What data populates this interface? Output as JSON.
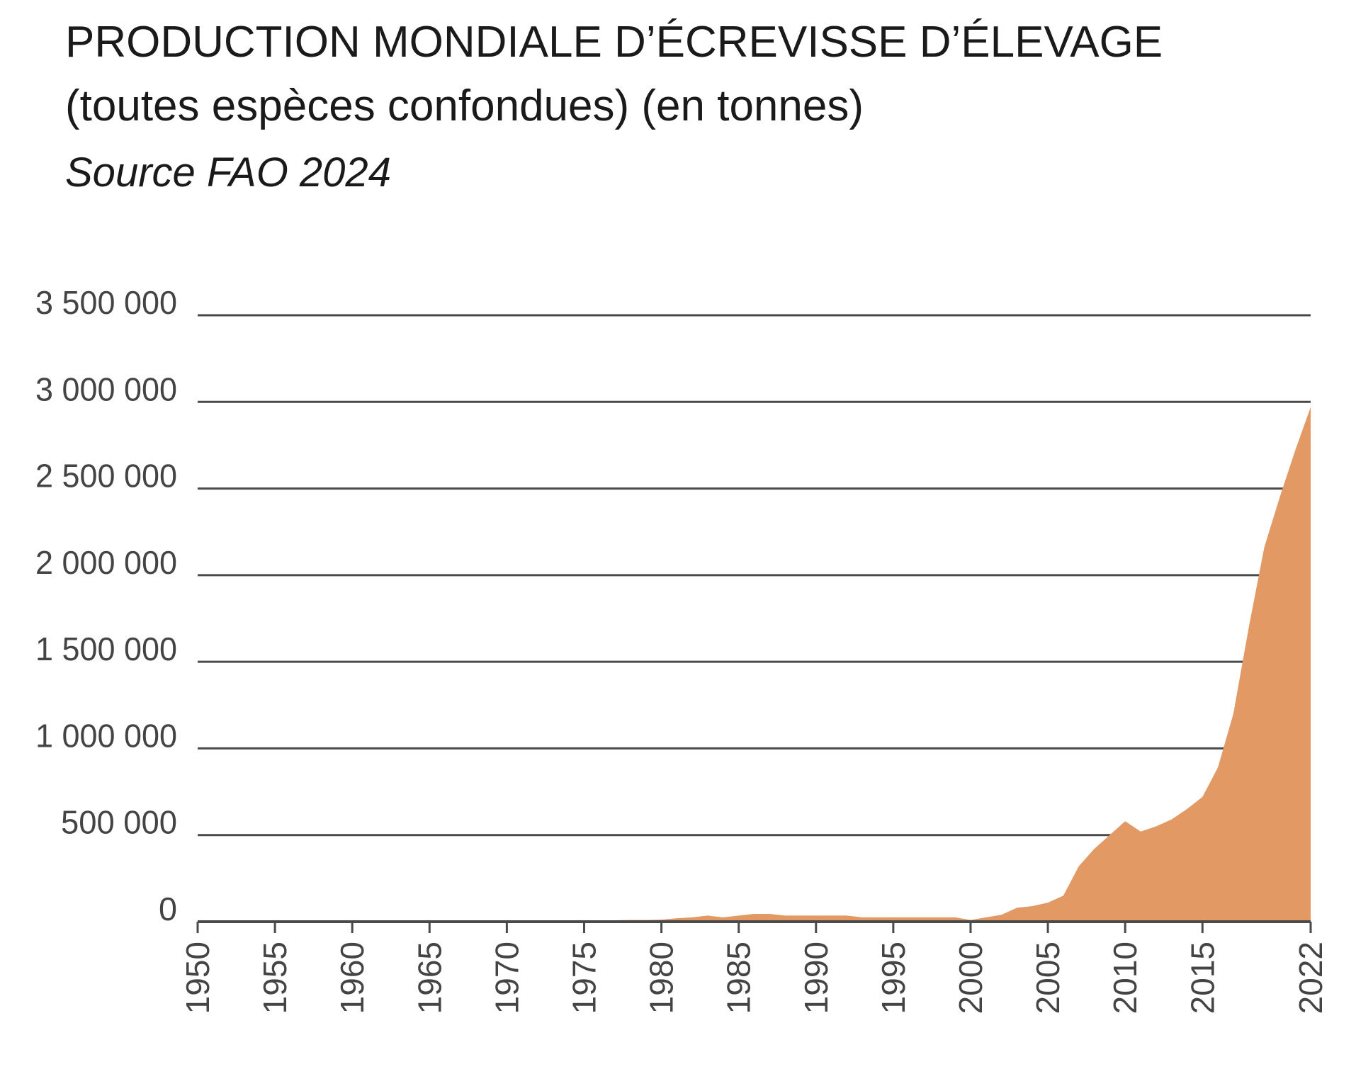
{
  "chart_data": {
    "type": "area",
    "title": "PRODUCTION MONDIALE D’ÉCREVISSE D’ÉLEVAGE",
    "subtitle": "(toutes espèces confondues) (en tonnes)",
    "source": "Source FAO 2024",
    "xlim": [
      1950,
      2022
    ],
    "ylim": [
      0,
      3500000
    ],
    "grid": true,
    "colors": {
      "area": "#e39964",
      "grid": "#4a4a4a",
      "text": "#444444"
    },
    "y_ticks": [
      {
        "value": 0,
        "label": "0"
      },
      {
        "value": 500000,
        "label": "500 000"
      },
      {
        "value": 1000000,
        "label": "1 000 000"
      },
      {
        "value": 1500000,
        "label": "1 500 000"
      },
      {
        "value": 2000000,
        "label": "2 000 000"
      },
      {
        "value": 2500000,
        "label": "2 500 000"
      },
      {
        "value": 3000000,
        "label": "3 000 000"
      },
      {
        "value": 3500000,
        "label": "3 500 000"
      }
    ],
    "x_ticks": [
      {
        "value": 1950,
        "label": "1950"
      },
      {
        "value": 1955,
        "label": "1955"
      },
      {
        "value": 1960,
        "label": "1960"
      },
      {
        "value": 1965,
        "label": "1965"
      },
      {
        "value": 1970,
        "label": "1970"
      },
      {
        "value": 1975,
        "label": "1975"
      },
      {
        "value": 1980,
        "label": "1980"
      },
      {
        "value": 1985,
        "label": "1985"
      },
      {
        "value": 1990,
        "label": "1990"
      },
      {
        "value": 1995,
        "label": "1995"
      },
      {
        "value": 2000,
        "label": "2000"
      },
      {
        "value": 2005,
        "label": "2005"
      },
      {
        "value": 2010,
        "label": "2010"
      },
      {
        "value": 2015,
        "label": "2015"
      },
      {
        "value": 2022,
        "label": "2022"
      }
    ],
    "series": [
      {
        "x": [
          1950,
          1951,
          1952,
          1953,
          1954,
          1955,
          1956,
          1957,
          1958,
          1959,
          1960,
          1961,
          1962,
          1963,
          1964,
          1965,
          1966,
          1967,
          1968,
          1969,
          1970,
          1971,
          1972,
          1973,
          1974,
          1975,
          1976,
          1977,
          1978,
          1979,
          1980,
          1981,
          1982,
          1983,
          1984,
          1985,
          1986,
          1987,
          1988,
          1989,
          1990,
          1991,
          1992,
          1993,
          1994,
          1995,
          1996,
          1997,
          1998,
          1999,
          2000,
          2001,
          2002,
          2003,
          2004,
          2005,
          2006,
          2007,
          2008,
          2009,
          2010,
          2011,
          2012,
          2013,
          2014,
          2015,
          2016,
          2017,
          2018,
          2019,
          2020,
          2021,
          2022
        ],
        "values": [
          0,
          0,
          0,
          0,
          0,
          0,
          0,
          0,
          0,
          0,
          0,
          0,
          0,
          0,
          0,
          0,
          0,
          0,
          0,
          0,
          0,
          0,
          0,
          0,
          0,
          0,
          5000,
          8000,
          10000,
          10000,
          12000,
          20000,
          25000,
          35000,
          25000,
          35000,
          45000,
          45000,
          35000,
          35000,
          35000,
          35000,
          35000,
          25000,
          25000,
          25000,
          25000,
          25000,
          25000,
          25000,
          10000,
          25000,
          40000,
          80000,
          90000,
          110000,
          150000,
          320000,
          420000,
          500000,
          580000,
          520000,
          550000,
          590000,
          650000,
          720000,
          890000,
          1200000,
          1700000,
          2160000,
          2450000,
          2720000,
          2970000
        ]
      }
    ]
  }
}
